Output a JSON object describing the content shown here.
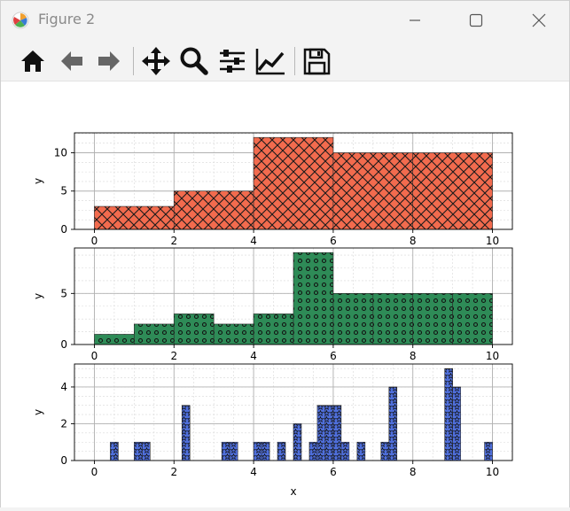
{
  "window": {
    "title": "Figure 2"
  },
  "toolbar": {
    "buttons": [
      {
        "name": "home-icon"
      },
      {
        "name": "back-icon"
      },
      {
        "name": "forward-icon"
      },
      {
        "name": "pan-icon"
      },
      {
        "name": "zoom-icon"
      },
      {
        "name": "configure-subplots-icon"
      },
      {
        "name": "edit-axis-icon"
      },
      {
        "name": "save-icon"
      }
    ]
  },
  "colors": {
    "panel1_fill": "#f26b4e",
    "panel2_fill": "#2e8b57",
    "panel3_fill": "#4f6fdc",
    "grid": "#b0b0b0"
  },
  "chart_data": [
    {
      "type": "bar",
      "hatch": "crosshatch",
      "bins": [
        [
          0,
          2
        ],
        [
          2,
          4
        ],
        [
          4,
          6
        ],
        [
          6,
          8
        ],
        [
          8,
          10
        ]
      ],
      "values": [
        3,
        5,
        12,
        10,
        10
      ],
      "xlabel": "",
      "ylabel": "y",
      "xticks": [
        "0",
        "2",
        "4",
        "6",
        "8",
        "10"
      ],
      "yticks": [
        "0",
        "5",
        "10"
      ],
      "xlim": [
        -0.5,
        10.5
      ],
      "ylim": [
        0,
        12.6
      ],
      "grid": true
    },
    {
      "type": "bar",
      "hatch": "circles",
      "bins": [
        [
          0,
          1
        ],
        [
          1,
          2
        ],
        [
          2,
          3
        ],
        [
          3,
          4
        ],
        [
          4,
          5
        ],
        [
          5,
          6
        ],
        [
          6,
          7
        ],
        [
          7,
          8
        ],
        [
          8,
          9
        ],
        [
          9,
          10
        ]
      ],
      "values": [
        1,
        2,
        3,
        2,
        3,
        9,
        5,
        5,
        5,
        5
      ],
      "xlabel": "",
      "ylabel": "y",
      "xticks": [
        "0",
        "2",
        "4",
        "6",
        "8",
        "10"
      ],
      "yticks": [
        "0",
        "5"
      ],
      "xlim": [
        -0.5,
        10.5
      ],
      "ylim": [
        0,
        9.45
      ],
      "grid": true
    },
    {
      "type": "bar",
      "hatch": "stars",
      "bins": [
        [
          0.4,
          0.6
        ],
        [
          1.0,
          1.2
        ],
        [
          1.2,
          1.4
        ],
        [
          2.2,
          2.4
        ],
        [
          3.2,
          3.4
        ],
        [
          3.4,
          3.6
        ],
        [
          4.0,
          4.2
        ],
        [
          4.2,
          4.4
        ],
        [
          4.6,
          4.8
        ],
        [
          5.0,
          5.2
        ],
        [
          5.4,
          5.6
        ],
        [
          5.6,
          5.8
        ],
        [
          5.8,
          6.0
        ],
        [
          6.0,
          6.2
        ],
        [
          6.2,
          6.4
        ],
        [
          6.6,
          6.8
        ],
        [
          7.2,
          7.4
        ],
        [
          7.4,
          7.6
        ],
        [
          8.8,
          9.0
        ],
        [
          9.0,
          9.2
        ],
        [
          9.8,
          10.0
        ]
      ],
      "values": [
        1,
        1,
        1,
        3,
        1,
        1,
        1,
        1,
        1,
        2,
        1,
        3,
        3,
        3,
        1,
        1,
        1,
        4,
        5,
        4,
        1
      ],
      "xlabel": "x",
      "ylabel": "y",
      "xticks": [
        "0",
        "2",
        "4",
        "6",
        "8",
        "10"
      ],
      "yticks": [
        "0",
        "2",
        "4"
      ],
      "xlim": [
        -0.5,
        10.5
      ],
      "ylim": [
        0,
        5.25
      ],
      "grid": true
    }
  ]
}
